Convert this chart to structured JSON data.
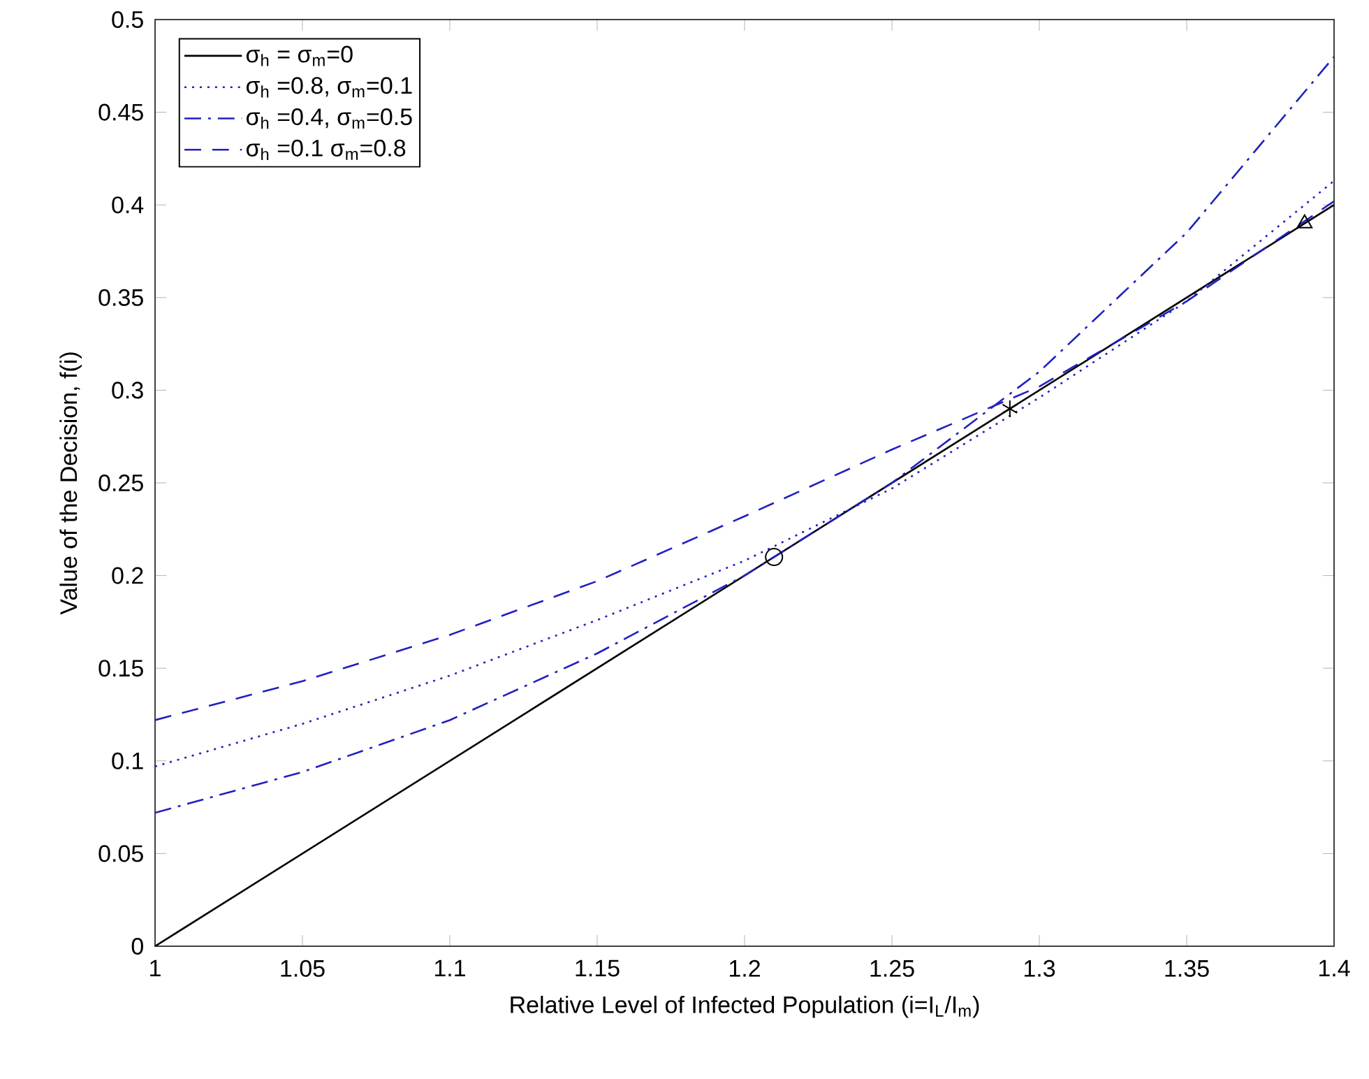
{
  "chart_data": {
    "type": "line",
    "xlabel": "Relative Level of Infected Population (i=I$_{L}$/I$_{m}$)",
    "ylabel": "Value of the Decision, f(i)",
    "xlim": [
      1,
      1.4
    ],
    "ylim": [
      0,
      0.5
    ],
    "xticks": [
      1,
      1.05,
      1.1,
      1.15,
      1.2,
      1.25,
      1.3,
      1.35,
      1.4
    ],
    "yticks": [
      0,
      0.05,
      0.1,
      0.15,
      0.2,
      0.25,
      0.3,
      0.35,
      0.4,
      0.45,
      0.5
    ],
    "legend": "top left",
    "grid": false,
    "series": [
      {
        "name": "σ$_{h}$ = σ$_{m}$=0",
        "color": "#000000",
        "line_style": "solid",
        "x": [
          1,
          1.4
        ],
        "values": [
          0,
          0.4
        ]
      },
      {
        "name": "σ$_{h}$ =0.8, σ$_{m}$=0.1",
        "color": "#2020c0",
        "line_style": "dotted",
        "x": [
          1,
          1.05,
          1.1,
          1.15,
          1.2,
          1.25,
          1.3,
          1.35,
          1.4
        ],
        "values": [
          0.097,
          0.12,
          0.146,
          0.176,
          0.208,
          0.247,
          0.296,
          0.348,
          0.413
        ]
      },
      {
        "name": "σ$_{h}$ =0.4, σ$_{m}$=0.5",
        "color": "#2020c0",
        "line_style": "dashdot",
        "x": [
          1,
          1.05,
          1.1,
          1.15,
          1.2,
          1.25,
          1.3,
          1.35,
          1.4
        ],
        "values": [
          0.072,
          0.094,
          0.122,
          0.158,
          0.2,
          0.25,
          0.31,
          0.385,
          0.48
        ]
      },
      {
        "name": "σ$_{h}$ =0.1 σ$_{m}$=0.8",
        "color": "#2020c0",
        "line_style": "dashed",
        "x": [
          1,
          1.05,
          1.1,
          1.15,
          1.2,
          1.25,
          1.3,
          1.35,
          1.4
        ],
        "values": [
          0.122,
          0.143,
          0.168,
          0.197,
          0.232,
          0.268,
          0.302,
          0.348,
          0.402
        ]
      },
      {
        "type": "scatter",
        "marker": "circle",
        "color": "#000000",
        "x": [
          1.21
        ],
        "values": [
          0.21
        ]
      },
      {
        "type": "scatter",
        "marker": "cross",
        "color": "#000000",
        "x": [
          1.29
        ],
        "values": [
          0.29
        ]
      },
      {
        "type": "scatter",
        "marker": "triangle",
        "color": "#000000",
        "x": [
          1.39
        ],
        "values": [
          0.39
        ]
      }
    ]
  }
}
